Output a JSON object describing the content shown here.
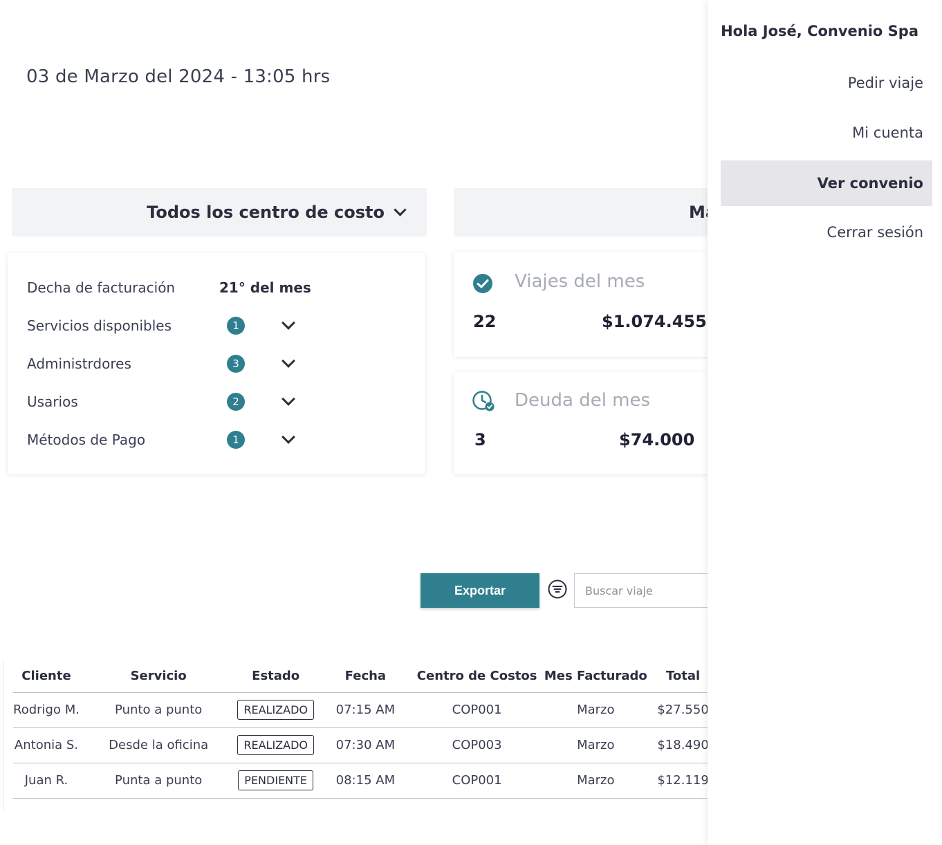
{
  "datetime": "03 de Marzo del 2024 - 13:05 hrs",
  "cost_center": {
    "label": "Todos los centro de costo"
  },
  "month_selector": {
    "label": "Mar"
  },
  "summary": {
    "rows": [
      {
        "label": "Decha de facturación",
        "value": "21° del mes"
      },
      {
        "label": "Servicios disponibles",
        "count": "1"
      },
      {
        "label": "Administrdores",
        "count": "3"
      },
      {
        "label": "Usarios",
        "count": "2"
      },
      {
        "label": "Métodos de Pago",
        "count": "1"
      }
    ]
  },
  "trips": {
    "title": "Viajes del mes",
    "count": "22",
    "amount": "$1.074.455"
  },
  "debt": {
    "title": "Deuda del mes",
    "count": "3",
    "amount": "$74.000"
  },
  "toolbar": {
    "export_label": "Exportar",
    "search_placeholder": "Buscar viaje"
  },
  "table": {
    "headers": [
      "Cliente",
      "Servicio",
      "Estado",
      "Fecha",
      "Centro de Costos",
      "Mes Facturado",
      "Total"
    ],
    "rows": [
      {
        "cliente": "Rodrigo M.",
        "servicio": "Punto a punto",
        "estado": "REALIZADO",
        "fecha": "07:15 AM",
        "centro": "COP001",
        "mes": "Marzo",
        "total": "$27.550"
      },
      {
        "cliente": "Antonia S.",
        "servicio": "Desde la oficina",
        "estado": "REALIZADO",
        "fecha": "07:30 AM",
        "centro": "COP003",
        "mes": "Marzo",
        "total": "$18.490"
      },
      {
        "cliente": "Juan R.",
        "servicio": "Punta a punto",
        "estado": "PENDIENTE",
        "fecha": "08:15 AM",
        "centro": "COP001",
        "mes": "Marzo",
        "total": "$12.119"
      }
    ]
  },
  "sidebar": {
    "greeting": "Hola José, Convenio Spa",
    "items": [
      {
        "label": "Pedir viaje",
        "active": false
      },
      {
        "label": "Mi cuenta",
        "active": false
      },
      {
        "label": "Ver convenio",
        "active": true
      },
      {
        "label": "Cerrar sesión",
        "active": false
      }
    ]
  },
  "colors": {
    "accent": "#2f7f8f",
    "text": "#2a2e3e",
    "muted": "#a7abb5",
    "panel": "#f2f3f5"
  }
}
